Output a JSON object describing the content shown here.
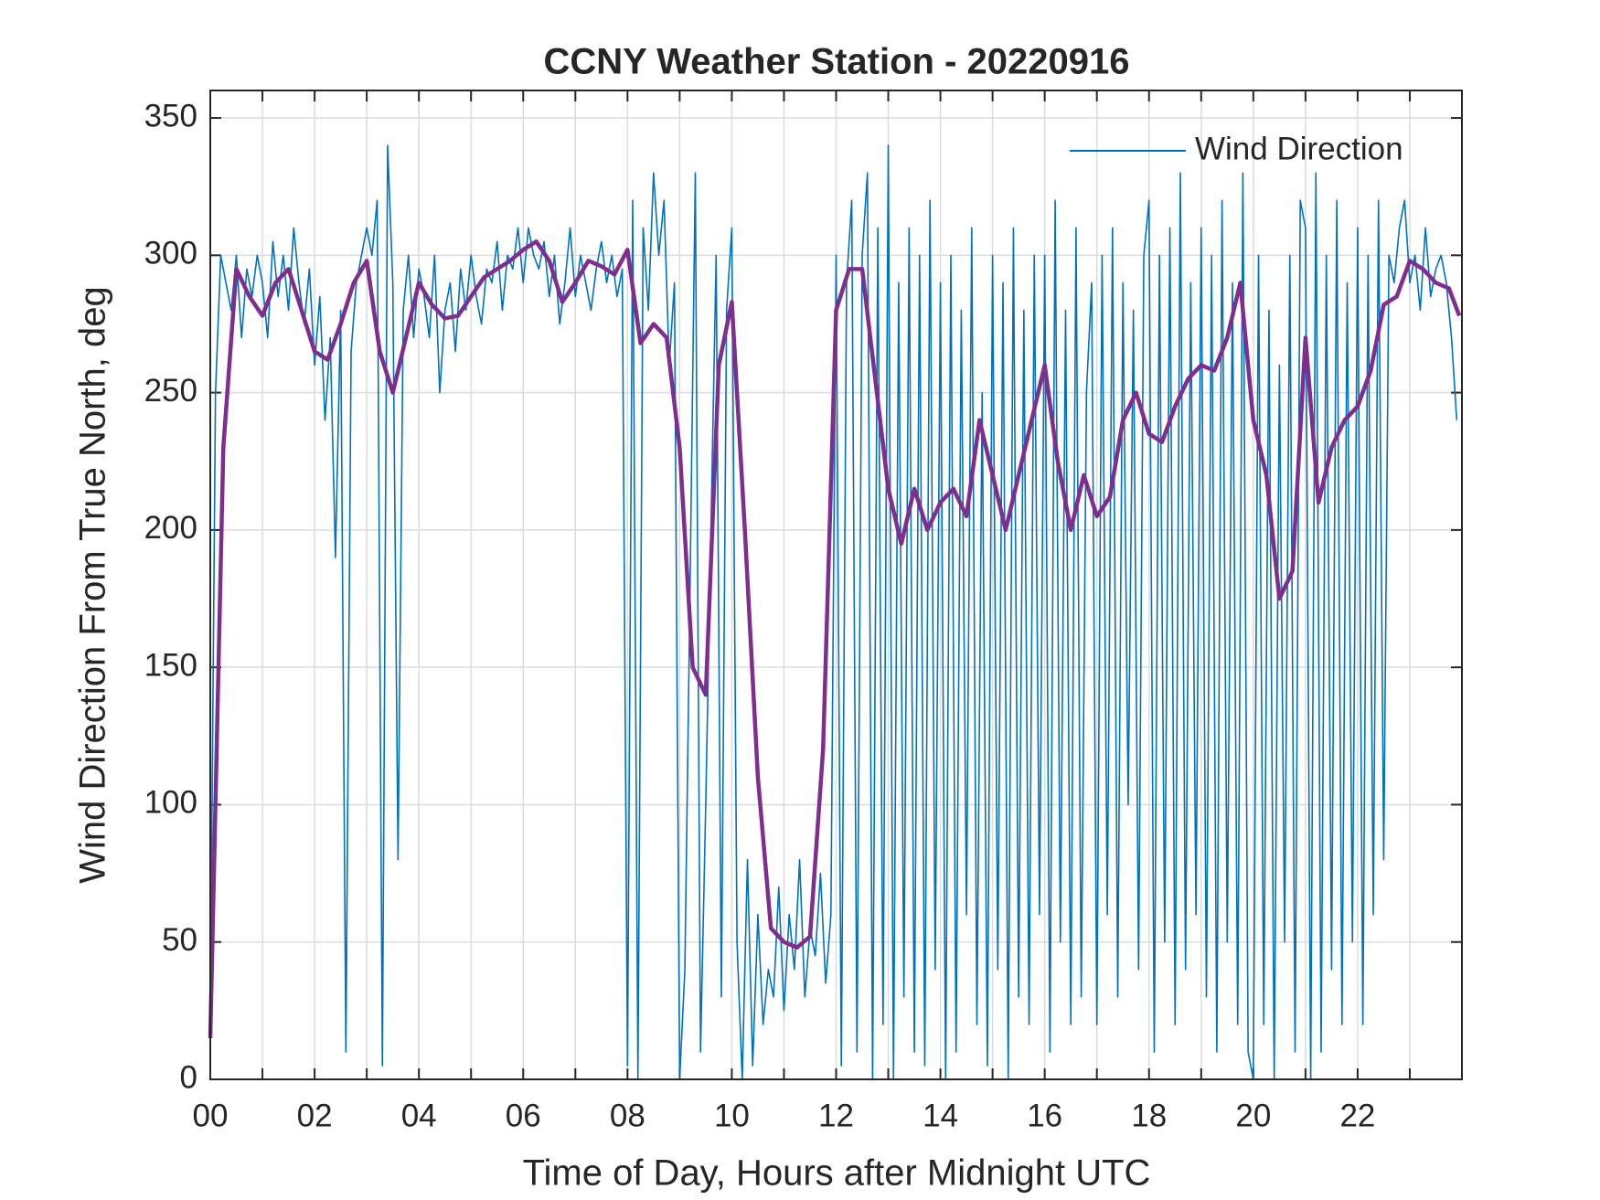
{
  "chart_data": {
    "type": "line",
    "title": "CCNY Weather Station - 20220916",
    "x_label": "Time of Day, Hours after Midnight UTC",
    "y_label": "Wind Direction From True North, deg",
    "xlim": [
      0,
      24
    ],
    "ylim": [
      0,
      360
    ],
    "xticks": [
      {
        "value": 0,
        "label": "00"
      },
      {
        "value": 2,
        "label": "02"
      },
      {
        "value": 4,
        "label": "04"
      },
      {
        "value": 6,
        "label": "06"
      },
      {
        "value": 8,
        "label": "08"
      },
      {
        "value": 10,
        "label": "10"
      },
      {
        "value": 12,
        "label": "12"
      },
      {
        "value": 14,
        "label": "14"
      },
      {
        "value": 16,
        "label": "16"
      },
      {
        "value": 18,
        "label": "18"
      },
      {
        "value": 20,
        "label": "20"
      },
      {
        "value": 22,
        "label": "22"
      }
    ],
    "x_minor_ticks": [
      1,
      3,
      5,
      7,
      9,
      11,
      13,
      15,
      17,
      19,
      21,
      23
    ],
    "yticks": [
      0,
      50,
      100,
      150,
      200,
      250,
      300,
      350
    ],
    "grid": true,
    "legend": "upper right",
    "series": [
      {
        "name": "Wind Direction",
        "color": "#0072bd",
        "x": [
          0,
          0.1,
          0.2,
          0.3,
          0.4,
          0.5,
          0.6,
          0.7,
          0.8,
          0.9,
          1,
          1.1,
          1.2,
          1.3,
          1.4,
          1.5,
          1.6,
          1.7,
          1.8,
          1.9,
          2,
          2.1,
          2.2,
          2.3,
          2.4,
          2.5,
          2.6,
          2.7,
          2.8,
          2.9,
          3,
          3.1,
          3.2,
          3.3,
          3.4,
          3.5,
          3.6,
          3.7,
          3.8,
          3.9,
          4,
          4.1,
          4.2,
          4.3,
          4.4,
          4.5,
          4.6,
          4.7,
          4.8,
          4.9,
          5,
          5.1,
          5.2,
          5.3,
          5.4,
          5.5,
          5.6,
          5.7,
          5.8,
          5.9,
          6,
          6.1,
          6.2,
          6.3,
          6.4,
          6.5,
          6.6,
          6.7,
          6.8,
          6.9,
          7,
          7.1,
          7.2,
          7.3,
          7.4,
          7.5,
          7.6,
          7.7,
          7.8,
          7.9,
          8,
          8.1,
          8.2,
          8.3,
          8.4,
          8.5,
          8.6,
          8.7,
          8.8,
          8.9,
          9,
          9.1,
          9.2,
          9.3,
          9.4,
          9.5,
          9.6,
          9.7,
          9.8,
          9.9,
          10,
          10.1,
          10.2,
          10.3,
          10.4,
          10.5,
          10.6,
          10.7,
          10.8,
          10.9,
          11,
          11.1,
          11.2,
          11.3,
          11.4,
          11.5,
          11.6,
          11.7,
          11.8,
          11.9,
          12,
          12.1,
          12.2,
          12.3,
          12.4,
          12.5,
          12.6,
          12.7,
          12.8,
          12.9,
          13,
          13.1,
          13.2,
          13.3,
          13.4,
          13.5,
          13.6,
          13.7,
          13.8,
          13.9,
          14,
          14.1,
          14.2,
          14.3,
          14.4,
          14.5,
          14.6,
          14.7,
          14.8,
          14.9,
          15,
          15.1,
          15.2,
          15.3,
          15.4,
          15.5,
          15.6,
          15.7,
          15.8,
          15.9,
          16,
          16.1,
          16.2,
          16.3,
          16.4,
          16.5,
          16.6,
          16.7,
          16.8,
          16.9,
          17,
          17.1,
          17.2,
          17.3,
          17.4,
          17.5,
          17.6,
          17.7,
          17.8,
          17.9,
          18,
          18.1,
          18.2,
          18.3,
          18.4,
          18.5,
          18.6,
          18.7,
          18.8,
          18.9,
          19,
          19.1,
          19.2,
          19.3,
          19.4,
          19.5,
          19.6,
          19.7,
          19.8,
          19.9,
          20,
          20.1,
          20.2,
          20.3,
          20.4,
          20.5,
          20.6,
          20.7,
          20.8,
          20.9,
          21,
          21.1,
          21.2,
          21.3,
          21.4,
          21.5,
          21.6,
          21.7,
          21.8,
          21.9,
          22,
          22.1,
          22.2,
          22.3,
          22.4,
          22.5,
          22.6,
          22.7,
          22.8,
          22.9,
          23,
          23.1,
          23.2,
          23.3,
          23.4,
          23.5,
          23.6,
          23.7,
          23.8,
          23.9
        ],
        "values": [
          20,
          250,
          300,
          290,
          280,
          300,
          270,
          295,
          285,
          300,
          290,
          270,
          305,
          285,
          300,
          280,
          310,
          290,
          275,
          295,
          260,
          285,
          240,
          270,
          190,
          280,
          10,
          265,
          290,
          300,
          310,
          300,
          320,
          5,
          340,
          290,
          80,
          280,
          300,
          270,
          295,
          285,
          270,
          300,
          250,
          280,
          290,
          265,
          295,
          280,
          300,
          285,
          275,
          295,
          290,
          305,
          280,
          300,
          295,
          310,
          290,
          310,
          300,
          295,
          305,
          285,
          300,
          275,
          290,
          310,
          285,
          300,
          290,
          280,
          295,
          305,
          290,
          300,
          285,
          295,
          5,
          320,
          0,
          310,
          280,
          330,
          300,
          320,
          260,
          290,
          0,
          40,
          180,
          330,
          10,
          100,
          200,
          300,
          30,
          280,
          310,
          50,
          0,
          80,
          5,
          60,
          20,
          40,
          30,
          70,
          25,
          60,
          40,
          80,
          30,
          55,
          45,
          75,
          35,
          60,
          300,
          5,
          290,
          320,
          10,
          300,
          330,
          0,
          310,
          20,
          340,
          0,
          290,
          30,
          310,
          10,
          300,
          5,
          320,
          40,
          290,
          0,
          300,
          10,
          280,
          60,
          310,
          20,
          250,
          5,
          300,
          40,
          290,
          0,
          310,
          30,
          280,
          20,
          300,
          60,
          300,
          10,
          320,
          50,
          280,
          20,
          310,
          30,
          250,
          290,
          20,
          300,
          60,
          310,
          30,
          290,
          100,
          280,
          40,
          300,
          320,
          10,
          300,
          50,
          310,
          20,
          330,
          40,
          290,
          60,
          310,
          30,
          300,
          10,
          320,
          50,
          290,
          20,
          330,
          10,
          0,
          300,
          20,
          280,
          0,
          260,
          50,
          300,
          10,
          320,
          310,
          0,
          330,
          10,
          300,
          40,
          320,
          20,
          290,
          50,
          310,
          20,
          300,
          60,
          320,
          80,
          300,
          290,
          310,
          320,
          290,
          300,
          280,
          310,
          285,
          295,
          300,
          290,
          270,
          240
        ]
      },
      {
        "color": "#7e2f8e",
        "x": [
          0,
          0.25,
          0.5,
          0.75,
          1,
          1.25,
          1.5,
          1.75,
          2,
          2.25,
          2.5,
          2.75,
          3,
          3.25,
          3.5,
          3.75,
          4,
          4.25,
          4.5,
          4.75,
          5,
          5.25,
          5.5,
          5.75,
          6,
          6.25,
          6.5,
          6.75,
          7,
          7.25,
          7.5,
          7.75,
          8,
          8.25,
          8.5,
          8.75,
          9,
          9.25,
          9.5,
          9.75,
          10,
          10.25,
          10.5,
          10.75,
          11,
          11.25,
          11.5,
          11.75,
          12,
          12.25,
          12.5,
          12.75,
          13,
          13.25,
          13.5,
          13.75,
          14,
          14.25,
          14.5,
          14.75,
          15,
          15.25,
          15.5,
          15.75,
          16,
          16.25,
          16.5,
          16.75,
          17,
          17.25,
          17.5,
          17.75,
          18,
          18.25,
          18.5,
          18.75,
          19,
          19.25,
          19.5,
          19.75,
          20,
          20.25,
          20.5,
          20.75,
          21,
          21.25,
          21.5,
          21.75,
          22,
          22.25,
          22.5,
          22.75,
          23,
          23.25,
          23.5,
          23.75,
          23.95
        ],
        "values": [
          15,
          230,
          295,
          285,
          278,
          290,
          295,
          280,
          265,
          262,
          275,
          290,
          298,
          265,
          250,
          270,
          290,
          282,
          277,
          278,
          285,
          292,
          295,
          298,
          302,
          305,
          298,
          283,
          290,
          298,
          296,
          293,
          302,
          268,
          275,
          270,
          230,
          150,
          140,
          260,
          283,
          200,
          110,
          55,
          50,
          48,
          52,
          120,
          280,
          295,
          295,
          255,
          215,
          195,
          215,
          200,
          210,
          215,
          205,
          240,
          220,
          200,
          220,
          240,
          260,
          225,
          200,
          220,
          205,
          212,
          240,
          250,
          235,
          232,
          245,
          255,
          260,
          258,
          270,
          290,
          240,
          220,
          175,
          185,
          270,
          210,
          230,
          240,
          245,
          258,
          282,
          285,
          298,
          295,
          290,
          288,
          278
        ]
      }
    ]
  }
}
